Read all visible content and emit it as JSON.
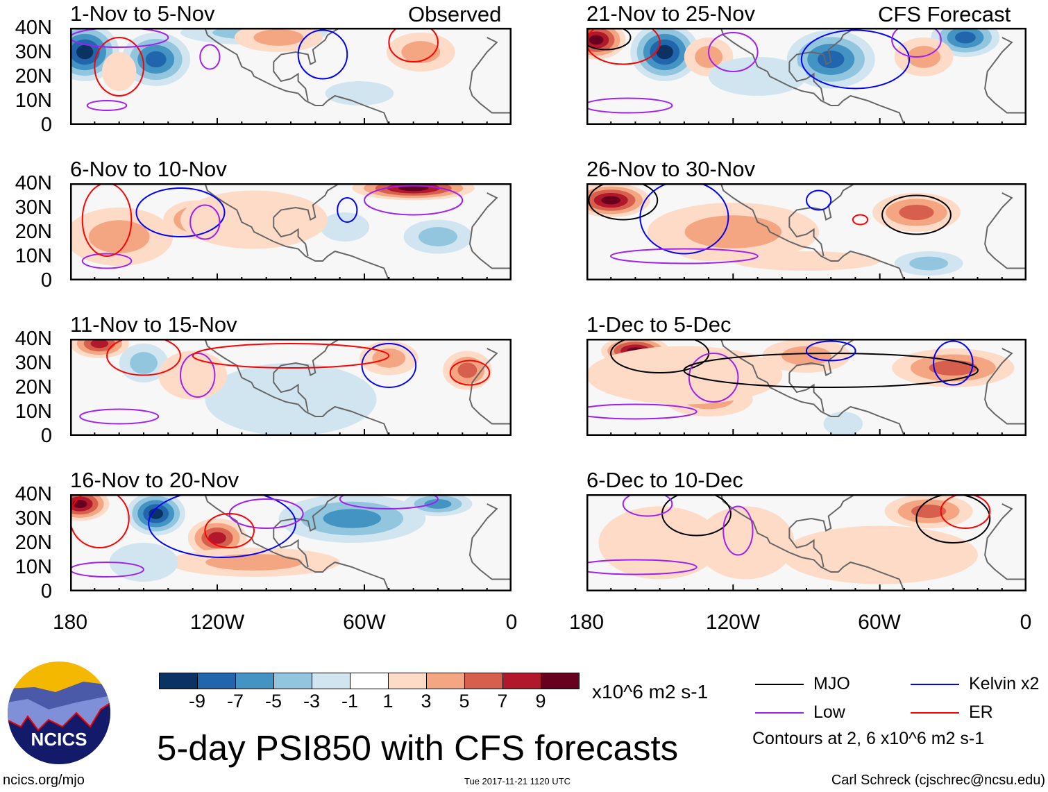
{
  "labels": {
    "observed": "Observed",
    "forecast": "CFS Forecast"
  },
  "lat_ticks": [
    "40N",
    "30N",
    "20N",
    "10N",
    "0"
  ],
  "lon_ticks": [
    "180",
    "120W",
    "60W",
    "0"
  ],
  "panels": [
    {
      "title": "1-Nov to 5-Nov",
      "anomalies": [
        [
          -174,
          30,
          -9,
          14,
          12
        ],
        [
          -145,
          27,
          -7,
          14,
          11
        ],
        [
          -105,
          38,
          -3,
          30,
          5
        ],
        [
          -62,
          13,
          -1.5,
          14,
          5
        ],
        [
          -37,
          30,
          3,
          14,
          8
        ],
        [
          -95,
          36,
          3,
          18,
          6
        ],
        [
          -160,
          22,
          1.5,
          7,
          8
        ]
      ],
      "contours": [
        [
          "low",
          -165,
          8,
          8,
          2
        ],
        [
          "er",
          -160,
          24,
          10,
          12
        ],
        [
          "low",
          -123,
          28,
          4,
          5
        ],
        [
          "kelvin",
          -77,
          29,
          10,
          10
        ],
        [
          "er",
          -40,
          34,
          10,
          8
        ],
        [
          "low",
          -160,
          36,
          20,
          4
        ]
      ]
    },
    {
      "title": "6-Nov to 10-Nov",
      "anomalies": [
        [
          -160,
          18,
          3,
          22,
          12
        ],
        [
          -128,
          25,
          5,
          14,
          8
        ],
        [
          -40,
          38,
          9,
          25,
          5
        ],
        [
          -30,
          18,
          -3,
          14,
          7
        ],
        [
          -68,
          22,
          -1.5,
          10,
          6
        ],
        [
          -105,
          25,
          1.5,
          30,
          12
        ]
      ],
      "contours": [
        [
          "low",
          -165,
          8,
          10,
          3
        ],
        [
          "er",
          -165,
          25,
          10,
          15
        ],
        [
          "kelvin",
          -135,
          28,
          18,
          10
        ],
        [
          "low",
          -125,
          24,
          6,
          7
        ],
        [
          "kelvin",
          -67,
          29,
          4,
          5
        ],
        [
          "low",
          -40,
          33,
          20,
          6
        ]
      ]
    },
    {
      "title": "11-Nov to 15-Nov",
      "anomalies": [
        [
          -168,
          38,
          7,
          12,
          6
        ],
        [
          -150,
          30,
          -3,
          10,
          8
        ],
        [
          -95,
          18,
          -5,
          14,
          10
        ],
        [
          -90,
          15,
          -1.5,
          35,
          15
        ],
        [
          -50,
          32,
          3,
          12,
          7
        ],
        [
          -18,
          27,
          5,
          10,
          8
        ],
        [
          -130,
          25,
          1.5,
          14,
          10
        ]
      ],
      "contours": [
        [
          "low",
          -160,
          8,
          16,
          3
        ],
        [
          "er",
          -150,
          33,
          15,
          8
        ],
        [
          "low",
          -128,
          25,
          7,
          9
        ],
        [
          "kelvin",
          -50,
          29,
          11,
          9
        ],
        [
          "er",
          -17,
          26,
          8,
          5
        ],
        [
          "er",
          -90,
          33,
          40,
          5
        ]
      ]
    },
    {
      "title": "16-Nov to 20-Nov",
      "anomalies": [
        [
          -176,
          36,
          9,
          12,
          7
        ],
        [
          -145,
          32,
          -9,
          12,
          9
        ],
        [
          -120,
          22,
          7,
          12,
          8
        ],
        [
          -105,
          12,
          3,
          35,
          6
        ],
        [
          -65,
          30,
          -5,
          30,
          10
        ],
        [
          -30,
          36,
          -5,
          14,
          5
        ],
        [
          -150,
          12,
          -1.5,
          14,
          8
        ]
      ],
      "contours": [
        [
          "low",
          -165,
          9,
          15,
          3
        ],
        [
          "er",
          -168,
          30,
          12,
          12
        ],
        [
          "kelvin",
          -118,
          28,
          30,
          14
        ],
        [
          "low",
          -100,
          32,
          15,
          6
        ],
        [
          "er",
          -115,
          25,
          10,
          7
        ],
        [
          "low",
          -50,
          38,
          20,
          4
        ]
      ]
    },
    {
      "title": "21-Nov to 25-Nov",
      "anomalies": [
        [
          -176,
          35,
          9,
          12,
          8
        ],
        [
          -148,
          30,
          -9,
          14,
          12
        ],
        [
          -80,
          27,
          -7,
          18,
          12
        ],
        [
          -25,
          36,
          -7,
          14,
          8
        ],
        [
          -130,
          28,
          3,
          10,
          8
        ],
        [
          -42,
          28,
          3,
          12,
          8
        ],
        [
          -110,
          20,
          -1.5,
          20,
          8
        ]
      ],
      "contours": [
        [
          "low",
          -163,
          8,
          18,
          3
        ],
        [
          "er",
          -165,
          34,
          15,
          9
        ],
        [
          "low",
          -120,
          30,
          10,
          8
        ],
        [
          "kelvin",
          -70,
          27,
          22,
          12
        ],
        [
          "low",
          -45,
          35,
          10,
          7
        ],
        [
          "mjo",
          -172,
          36,
          10,
          5
        ]
      ]
    },
    {
      "title": "26-Nov to 30-Nov",
      "anomalies": [
        [
          -170,
          33,
          9,
          16,
          7
        ],
        [
          -130,
          18,
          5,
          18,
          10
        ],
        [
          -120,
          20,
          3,
          35,
          12
        ],
        [
          -45,
          28,
          5,
          18,
          8
        ],
        [
          -40,
          7,
          -3,
          14,
          5
        ],
        [
          -90,
          8,
          1.5,
          30,
          4
        ]
      ],
      "contours": [
        [
          "mjo",
          -165,
          33,
          14,
          8
        ],
        [
          "kelvin",
          -140,
          26,
          18,
          15
        ],
        [
          "low",
          -140,
          10,
          30,
          3
        ],
        [
          "mjo",
          -45,
          27,
          14,
          8
        ],
        [
          "er",
          -68,
          25,
          3,
          2
        ],
        [
          "kelvin",
          -85,
          33,
          5,
          4
        ]
      ]
    },
    {
      "title": "1-Dec to 5-Dec",
      "anomalies": [
        [
          -160,
          35,
          9,
          14,
          6
        ],
        [
          -90,
          33,
          3,
          18,
          7
        ],
        [
          -30,
          28,
          5,
          25,
          8
        ],
        [
          -130,
          15,
          3,
          18,
          7
        ],
        [
          -75,
          5,
          -1.5,
          8,
          5
        ],
        [
          -140,
          25,
          1.5,
          40,
          12
        ]
      ],
      "contours": [
        [
          "mjo",
          -150,
          34,
          20,
          8
        ],
        [
          "low",
          -128,
          24,
          10,
          10
        ],
        [
          "low",
          -160,
          10,
          25,
          3
        ],
        [
          "mjo",
          -80,
          27,
          60,
          7
        ],
        [
          "kelvin",
          -30,
          30,
          8,
          9
        ],
        [
          "kelvin",
          -80,
          35,
          10,
          4
        ]
      ]
    },
    {
      "title": "6-Dec to 10-Dec",
      "anomalies": [
        [
          -150,
          20,
          1.5,
          25,
          15
        ],
        [
          -40,
          33,
          5,
          18,
          7
        ],
        [
          -115,
          20,
          1.5,
          20,
          15
        ],
        [
          -60,
          15,
          1.5,
          40,
          12
        ]
      ],
      "contours": [
        [
          "mjo",
          -135,
          32,
          14,
          9
        ],
        [
          "low",
          -118,
          25,
          6,
          10
        ],
        [
          "low",
          -160,
          10,
          25,
          3
        ],
        [
          "mjo",
          -30,
          30,
          15,
          10
        ],
        [
          "er",
          -25,
          33,
          10,
          7
        ],
        [
          "low",
          -155,
          36,
          10,
          5
        ]
      ]
    }
  ],
  "colorbar": {
    "colors": [
      "#0a3263",
      "#2166ac",
      "#4393c3",
      "#92c5de",
      "#d1e5f0",
      "#ffffff",
      "#fddbc7",
      "#f4a582",
      "#d6604d",
      "#b2182b",
      "#67001f"
    ],
    "ticks": [
      "-9",
      "-7",
      "-5",
      "-3",
      "-1",
      "1",
      "3",
      "5",
      "7",
      "9"
    ],
    "units": "x10^6 m2 s-1"
  },
  "legend": {
    "mjo": {
      "label": "MJO",
      "color": "#000000"
    },
    "kelvin": {
      "label": "Kelvin x2",
      "color": "#0000ff"
    },
    "low": {
      "label": "Low",
      "color": "#a020f0"
    },
    "er": {
      "label": "ER",
      "color": "#ff0000"
    },
    "note": "Contours at 2, 6 x10^6 m2 s-1"
  },
  "title": "5-day PSI850 with CFS forecasts",
  "logo_text": "NCICS",
  "footer": {
    "url": "ncics.org/mjo",
    "timestamp": "Tue 2017-11-21 1120 UTC",
    "author": "Carl Schreck (cjschrec@ncsu.edu)"
  }
}
